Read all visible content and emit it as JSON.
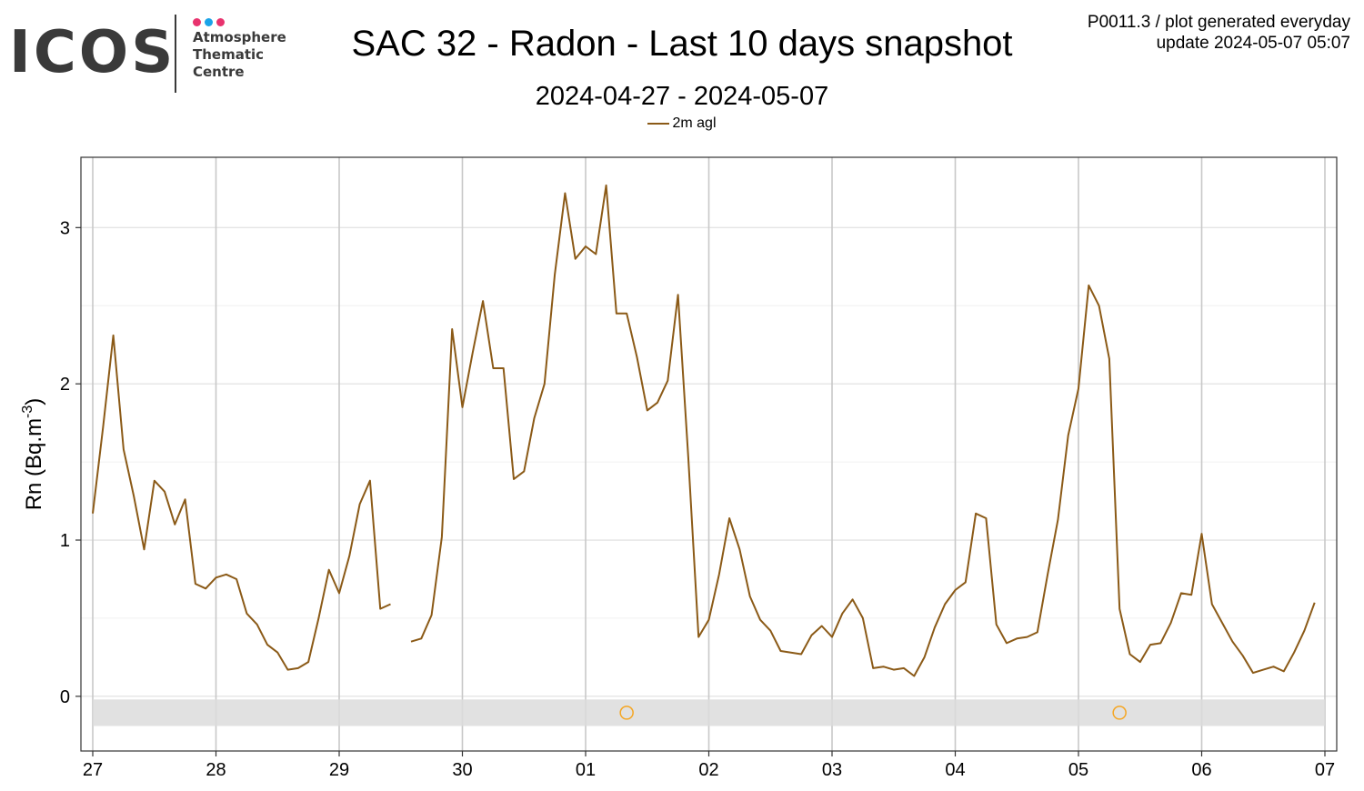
{
  "header": {
    "logo": {
      "word": "ICOS",
      "lines": [
        "Atmosphere",
        "Thematic",
        "Centre"
      ],
      "dot_colors": [
        "#e8336e",
        "#1aa3e8",
        "#e8336e"
      ],
      "color": "#3a3a3a"
    },
    "title": "SAC 32 - Radon - Last 10 days snapshot",
    "subtitle": "2024-04-27 - 2024-05-07",
    "meta_line1": "P0011.3 / plot generated everyday",
    "meta_line2": "update  2024-05-07 05:07"
  },
  "chart_data": {
    "type": "line",
    "title": "SAC 32 - Radon - Last 10 days snapshot",
    "subtitle": "2024-04-27 - 2024-05-07",
    "ylabel_base": "Rn (Bq.m",
    "ylabel_sup": "-3",
    "ylabel_close": ")",
    "xlabel": "",
    "xlim": [
      "2024-04-27 00:00",
      "2024-05-07 00:00"
    ],
    "ylim": [
      -0.35,
      3.45
    ],
    "x_ticks": [
      "27",
      "28",
      "29",
      "30",
      "01",
      "02",
      "03",
      "04",
      "05",
      "06",
      "07"
    ],
    "y_ticks": [
      0,
      1,
      2,
      3
    ],
    "grid": true,
    "legend_position": "top-center",
    "series": [
      {
        "name": "2m agl",
        "color": "#8b5a17",
        "x_start": "2024-04-27 00:00",
        "x_step_hours": 2,
        "values": [
          1.17,
          1.72,
          2.31,
          1.58,
          1.28,
          0.94,
          1.38,
          1.31,
          1.1,
          1.26,
          0.72,
          0.69,
          0.76,
          0.78,
          0.75,
          0.53,
          0.46,
          0.33,
          0.28,
          0.17,
          0.18,
          0.22,
          0.5,
          0.81,
          0.66,
          0.9,
          1.23,
          1.38,
          0.56,
          0.59,
          null,
          0.35,
          0.37,
          0.52,
          1.02,
          2.35,
          1.85,
          2.2,
          2.53,
          2.1,
          2.1,
          1.39,
          1.44,
          1.78,
          2.0,
          2.7,
          3.22,
          2.8,
          2.88,
          2.83,
          3.27,
          2.45,
          2.45,
          2.17,
          1.83,
          1.88,
          2.02,
          2.57,
          1.53,
          0.38,
          0.49,
          0.78,
          1.14,
          0.94,
          0.64,
          0.49,
          0.42,
          0.29,
          0.28,
          0.27,
          0.39,
          0.45,
          0.38,
          0.53,
          0.62,
          0.5,
          0.18,
          0.19,
          0.17,
          0.18,
          0.13,
          0.25,
          0.44,
          0.59,
          0.68,
          0.73,
          1.17,
          1.14,
          0.46,
          0.34,
          0.37,
          0.38,
          0.41,
          0.78,
          1.13,
          1.67,
          1.97,
          2.63,
          2.5,
          2.16,
          0.56,
          0.27,
          0.22,
          0.33,
          0.34,
          0.47,
          0.66,
          0.65,
          1.04,
          0.59,
          0.47,
          0.35,
          0.26,
          0.15,
          0.17,
          0.19,
          0.16,
          0.28,
          0.42,
          0.6
        ]
      }
    ],
    "flag_band": {
      "ymin": -0.19,
      "ymax": -0.02,
      "color": "#dcdcdc"
    },
    "flag_markers": {
      "color": "#f5a623",
      "points": [
        {
          "x": "2024-05-01 08:00",
          "y": -0.105
        },
        {
          "x": "2024-05-05 08:00",
          "y": -0.105
        }
      ]
    }
  }
}
